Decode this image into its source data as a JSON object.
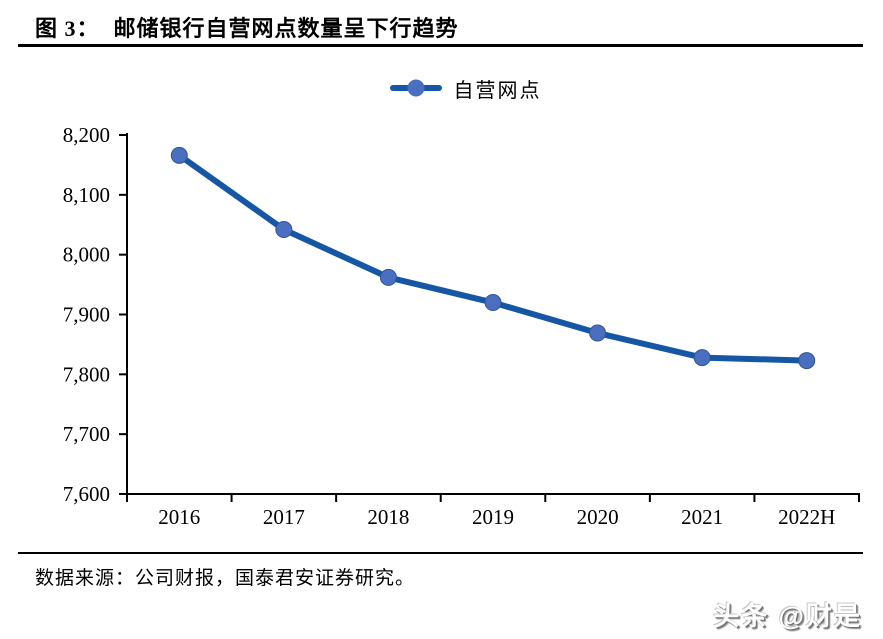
{
  "figure": {
    "caption_prefix": "图 3：",
    "caption_title": "邮储银行自营网点数量呈下行趋势",
    "source": "数据来源：公司财报，国泰君安证券研究。",
    "watermark": "头条 @财是"
  },
  "chart_data": {
    "type": "line",
    "title": "邮储银行自营网点数量呈下行趋势",
    "categories": [
      "2016",
      "2017",
      "2018",
      "2019",
      "2020",
      "2021",
      "2022H"
    ],
    "series": [
      {
        "name": "自营网点",
        "values": [
          8166,
          8042,
          7962,
          7920,
          7869,
          7828,
          7823
        ]
      }
    ],
    "ylim": [
      7600,
      8200
    ],
    "ytick_step": 100,
    "ytick_labels": [
      "7,600",
      "7,700",
      "7,800",
      "7,900",
      "8,000",
      "8,100",
      "8,200"
    ],
    "grid": false,
    "legend_position": "top-center",
    "marker": "circle",
    "colors": {
      "line": "#1657a5",
      "marker": "#4b6fc0",
      "marker_edge": "#2f5597",
      "axis": "#000000"
    }
  }
}
